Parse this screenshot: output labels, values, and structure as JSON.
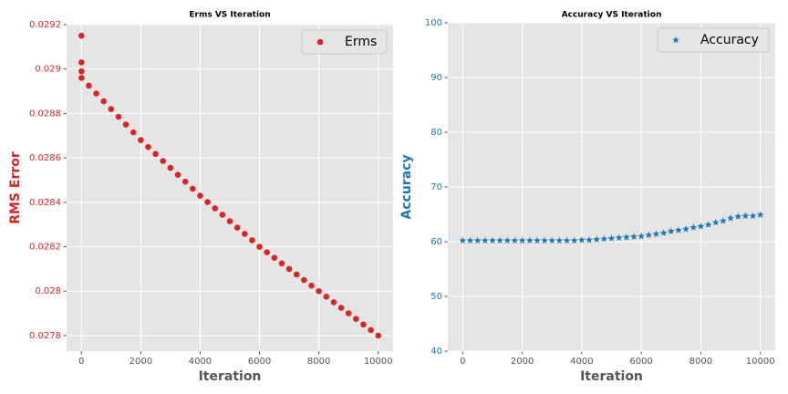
{
  "chart_data": [
    {
      "type": "scatter",
      "title": "Erms VS Iteration",
      "xlabel": "Iteration",
      "ylabel": "RMS Error",
      "xlim": [
        -500,
        10500
      ],
      "xticks": [
        0,
        2000,
        4000,
        6000,
        8000,
        10000
      ],
      "ylim": [
        0.02773,
        0.0292
      ],
      "yticks": [
        0.0278,
        0.028,
        0.0282,
        0.0284,
        0.0286,
        0.0288,
        0.029,
        0.0292
      ],
      "grid": true,
      "legend": "upper right",
      "x": [
        0,
        1,
        2,
        3,
        250,
        500,
        750,
        1000,
        1250,
        1500,
        1750,
        2000,
        2250,
        2500,
        2750,
        3000,
        3250,
        3500,
        3750,
        4000,
        4250,
        4500,
        4750,
        5000,
        5250,
        5500,
        5750,
        6000,
        6250,
        6500,
        6750,
        7000,
        7250,
        7500,
        7750,
        8000,
        8250,
        8500,
        8750,
        9000,
        9250,
        9500,
        9750,
        10000
      ],
      "series": [
        {
          "name": "Erms",
          "color": "#d62728",
          "marker": "circle",
          "values": [
            0.02915,
            0.02903,
            0.02899,
            0.02896,
            0.028925,
            0.02889,
            0.028855,
            0.02882,
            0.028785,
            0.02875,
            0.028715,
            0.02868,
            0.028649,
            0.028618,
            0.028586,
            0.028555,
            0.028524,
            0.028493,
            0.028461,
            0.02843,
            0.028401,
            0.028373,
            0.028344,
            0.028315,
            0.028286,
            0.028258,
            0.028229,
            0.0282,
            0.028175,
            0.02815,
            0.028125,
            0.0281,
            0.028075,
            0.02805,
            0.028025,
            0.028,
            0.027975,
            0.02795,
            0.027925,
            0.0279,
            0.027875,
            0.02785,
            0.027825,
            0.0278
          ]
        }
      ]
    },
    {
      "type": "scatter",
      "title": "Accuracy VS Iteration",
      "xlabel": "Iteration",
      "ylabel": "Accuracy",
      "xlim": [
        -500,
        10500
      ],
      "xticks": [
        0,
        2000,
        4000,
        6000,
        8000,
        10000
      ],
      "ylim": [
        40,
        100
      ],
      "yticks": [
        40,
        50,
        60,
        70,
        80,
        90,
        100
      ],
      "grid": true,
      "legend": "upper right",
      "x": [
        0,
        250,
        500,
        750,
        1000,
        1250,
        1500,
        1750,
        2000,
        2250,
        2500,
        2750,
        3000,
        3250,
        3500,
        3750,
        4000,
        4250,
        4500,
        4750,
        5000,
        5250,
        5500,
        5750,
        6000,
        6250,
        6500,
        6750,
        7000,
        7250,
        7500,
        7750,
        8000,
        8250,
        8500,
        8750,
        9000,
        9250,
        9500,
        9750,
        10000
      ],
      "series": [
        {
          "name": "Accuracy",
          "color": "#1f77b4",
          "marker": "star",
          "values": [
            60.2,
            60.2,
            60.2,
            60.2,
            60.2,
            60.2,
            60.2,
            60.2,
            60.2,
            60.2,
            60.2,
            60.2,
            60.2,
            60.2,
            60.2,
            60.2,
            60.3,
            60.3,
            60.4,
            60.5,
            60.6,
            60.7,
            60.8,
            60.9,
            61.0,
            61.2,
            61.4,
            61.6,
            61.9,
            62.1,
            62.3,
            62.6,
            62.8,
            63.1,
            63.5,
            63.8,
            64.3,
            64.6,
            64.7,
            64.7,
            64.9
          ]
        }
      ]
    }
  ]
}
